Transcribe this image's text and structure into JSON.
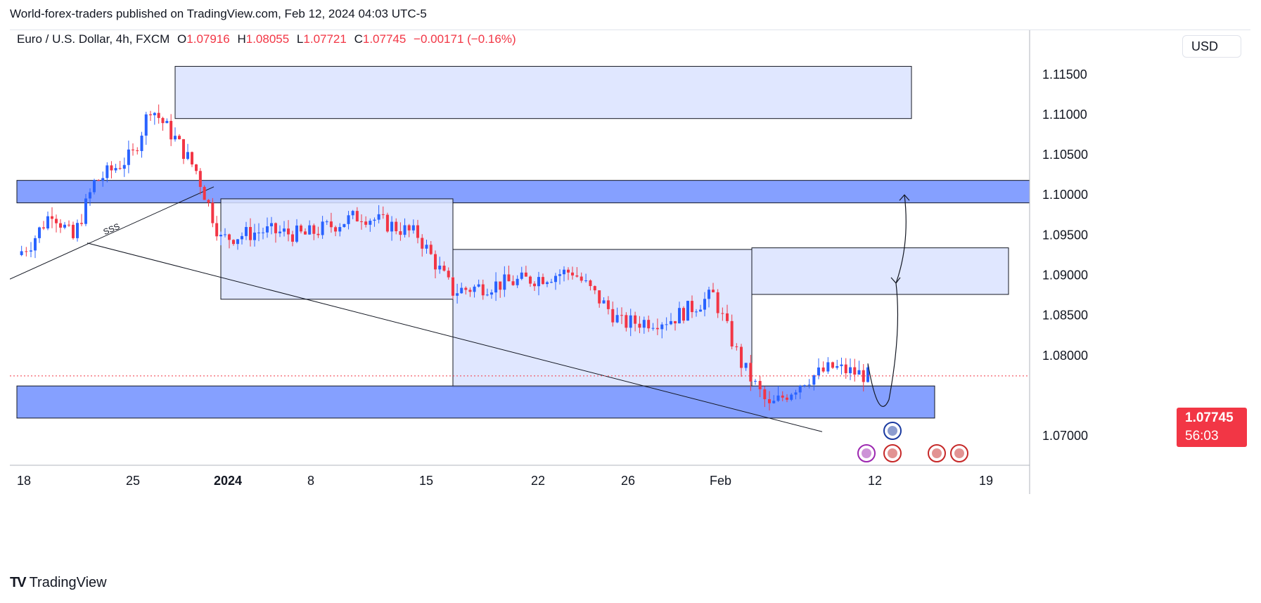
{
  "header": {
    "published_by": "World-forex-traders published on TradingView.com, Feb 12, 2024 04:03 UTC-5"
  },
  "legend": {
    "symbol": "Euro / U.S. Dollar, 4h, FXCM",
    "open_label": "O",
    "open": "1.07916",
    "high_label": "H",
    "high": "1.08055",
    "low_label": "L",
    "low": "1.07721",
    "close_label": "C",
    "close": "1.07745",
    "change": "−0.00171 (−0.16%)"
  },
  "currency_button": "USD",
  "last_price": {
    "price": "1.07745",
    "countdown": "56:03"
  },
  "footer": {
    "brand": "TradingView"
  },
  "annotations": {
    "sweep_label": "SSS"
  },
  "colors": {
    "up": "#2962ff",
    "down": "#f23645",
    "zone_dark": "#7e9bff",
    "zone_light": "#dbe3ff",
    "price_tag": "#f23645"
  },
  "chart_data": {
    "type": "candlestick",
    "title": "",
    "xlabel": "",
    "ylabel": "",
    "ylim": [
      1.0665,
      1.1205
    ],
    "y_ticks": [
      "1.11500",
      "1.11000",
      "1.10500",
      "1.10000",
      "1.09500",
      "1.09000",
      "1.08500",
      "1.08000",
      "1.07000"
    ],
    "x_ticks": [
      "18",
      "25",
      "2024",
      "8",
      "15",
      "22",
      "26",
      "Feb",
      "12",
      "19"
    ],
    "last_price": 1.07745,
    "series": [
      {
        "x": "Dec 18",
        "close": 1.0925
      },
      {
        "x": "Dec 19",
        "close": 1.094
      },
      {
        "x": "Dec 20",
        "close": 1.098
      },
      {
        "x": "Dec 21",
        "close": 1.0945
      },
      {
        "x": "Dec 22",
        "close": 1.1015
      },
      {
        "x": "Dec 26",
        "close": 1.105
      },
      {
        "x": "Dec 27",
        "close": 1.111
      },
      {
        "x": "Dec 28",
        "close": 1.107
      },
      {
        "x": "Dec 29",
        "close": 1.103
      },
      {
        "x": "Jan 2",
        "close": 1.0945
      },
      {
        "x": "Jan 4",
        "close": 1.0955
      },
      {
        "x": "Jan 8",
        "close": 1.095
      },
      {
        "x": "Jan 11",
        "close": 1.0975
      },
      {
        "x": "Jan 15",
        "close": 1.095
      },
      {
        "x": "Jan 17",
        "close": 1.088
      },
      {
        "x": "Jan 22",
        "close": 1.0895
      },
      {
        "x": "Jan 24",
        "close": 1.0905
      },
      {
        "x": "Jan 26",
        "close": 1.084
      },
      {
        "x": "Jan 30",
        "close": 1.0845
      },
      {
        "x": "Feb 1",
        "close": 1.0875
      },
      {
        "x": "Feb 2",
        "close": 1.079
      },
      {
        "x": "Feb 5",
        "close": 1.0735
      },
      {
        "x": "Feb 7",
        "close": 1.077
      },
      {
        "x": "Feb 9",
        "close": 1.0785
      },
      {
        "x": "Feb 12",
        "close": 1.07745
      }
    ],
    "zones": [
      {
        "name": "supply-top",
        "from_date": "Dec 28",
        "to_date": "Feb 13",
        "low": 1.1095,
        "high": 1.116,
        "style": "light"
      },
      {
        "name": "resistance-1.10",
        "from_date": "Dec 18",
        "to_date": "Feb 22",
        "low": 1.099,
        "high": 1.1018,
        "style": "dark"
      },
      {
        "name": "range-jan",
        "from_date": "Jan 2",
        "to_date": "Jan 17",
        "low": 1.087,
        "high": 1.0995,
        "style": "light"
      },
      {
        "name": "range-jan-late",
        "from_date": "Jan 17",
        "to_date": "Feb 3",
        "low": 1.076,
        "high": 1.0932,
        "style": "light"
      },
      {
        "name": "target-zone",
        "from_date": "Feb 3",
        "to_date": "Feb 19",
        "low": 1.0876,
        "high": 1.0934,
        "style": "light"
      },
      {
        "name": "demand-1.0725",
        "from_date": "Dec 18",
        "to_date": "Feb 15",
        "low": 1.0722,
        "high": 1.0762,
        "style": "dark"
      }
    ]
  }
}
